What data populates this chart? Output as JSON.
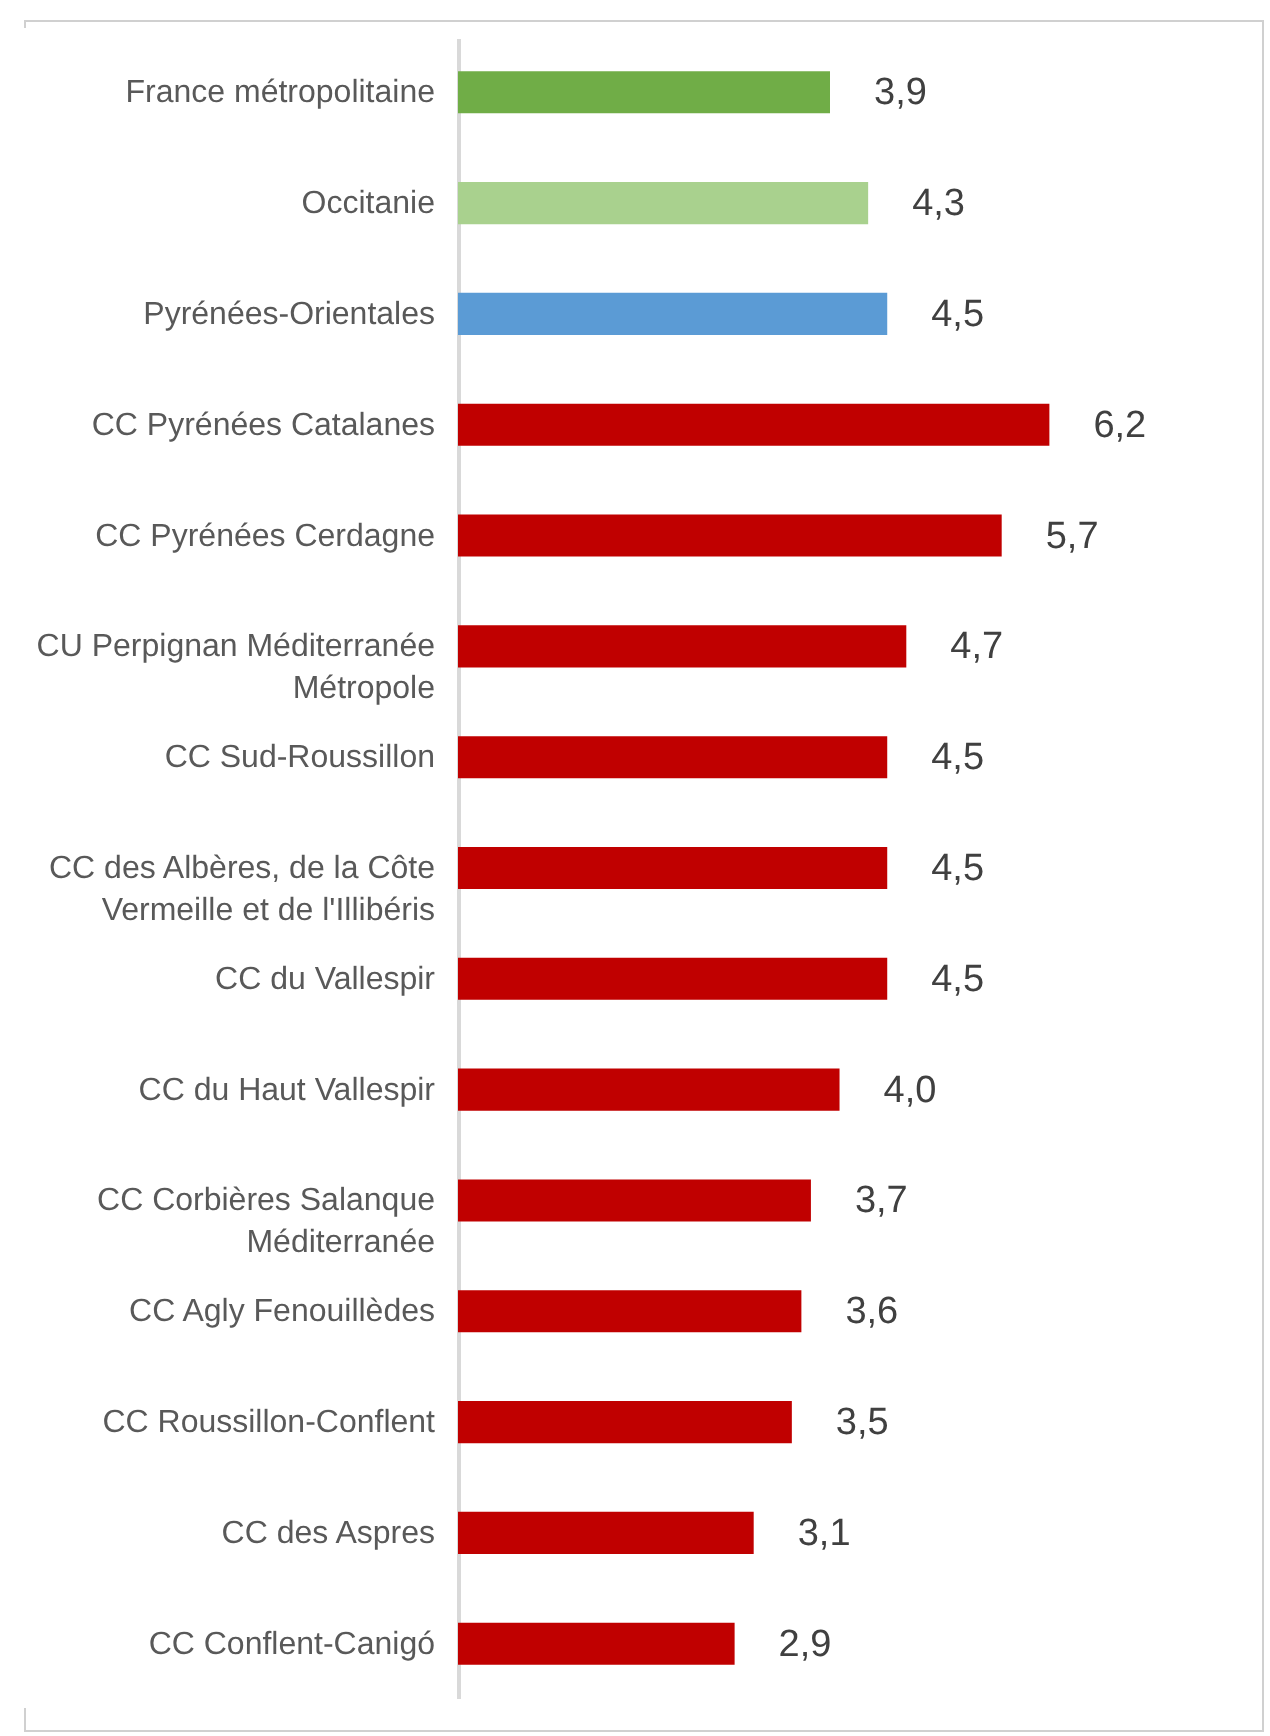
{
  "chart_data": {
    "type": "bar",
    "orientation": "horizontal",
    "categories": [
      "France métropolitaine",
      "Occitanie",
      "Pyrénées-Orientales",
      "CC Pyrénées Catalanes",
      "CC Pyrénées Cerdagne",
      "CU Perpignan Méditerranée Métropole",
      "CC Sud-Roussillon",
      "CC des Albères, de la Côte Vermeille et de l'Illibéris",
      "CC du Vallespir",
      "CC du Haut Vallespir",
      "CC Corbières Salanque Méditerranée",
      "CC Agly Fenouillèdes",
      "CC Roussillon-Conflent",
      "CC des Aspres",
      "CC Conflent-Canigó"
    ],
    "values": [
      3.9,
      4.3,
      4.5,
      6.2,
      5.7,
      4.7,
      4.5,
      4.5,
      4.5,
      4.0,
      3.7,
      3.6,
      3.5,
      3.1,
      2.9
    ],
    "value_labels": [
      "3,9",
      "4,3",
      "4,5",
      "6,2",
      "5,7",
      "4,7",
      "4,5",
      "4,5",
      "4,5",
      "4,0",
      "3,7",
      "3,6",
      "3,5",
      "3,1",
      "2,9"
    ],
    "colors": [
      "#70ad47",
      "#a9d18e",
      "#5b9bd5",
      "#c00000",
      "#c00000",
      "#c00000",
      "#c00000",
      "#c00000",
      "#c00000",
      "#c00000",
      "#c00000",
      "#c00000",
      "#c00000",
      "#c00000",
      "#c00000"
    ]
  }
}
